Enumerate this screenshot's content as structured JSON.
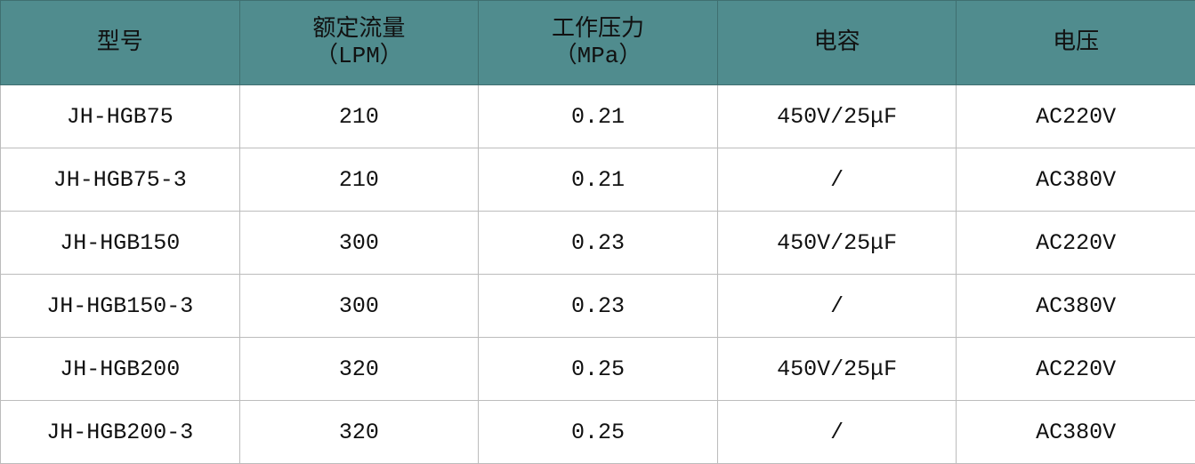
{
  "header_color": "#508c8e",
  "columns": [
    {
      "label": "型号",
      "unit": ""
    },
    {
      "label": "额定流量",
      "unit": "（LPM）"
    },
    {
      "label": "工作压力",
      "unit": "（MPa）"
    },
    {
      "label": "电容",
      "unit": ""
    },
    {
      "label": "电压",
      "unit": ""
    }
  ],
  "rows": [
    [
      "JH-HGB75",
      "210",
      "0.21",
      "450V/25μF",
      "AC220V"
    ],
    [
      "JH-HGB75-3",
      "210",
      "0.21",
      "/",
      "AC380V"
    ],
    [
      "JH-HGB150",
      "300",
      "0.23",
      "450V/25μF",
      "AC220V"
    ],
    [
      "JH-HGB150-3",
      "300",
      "0.23",
      "/",
      "AC380V"
    ],
    [
      "JH-HGB200",
      "320",
      "0.25",
      "450V/25μF",
      "AC220V"
    ],
    [
      "JH-HGB200-3",
      "320",
      "0.25",
      "/",
      "AC380V"
    ]
  ]
}
